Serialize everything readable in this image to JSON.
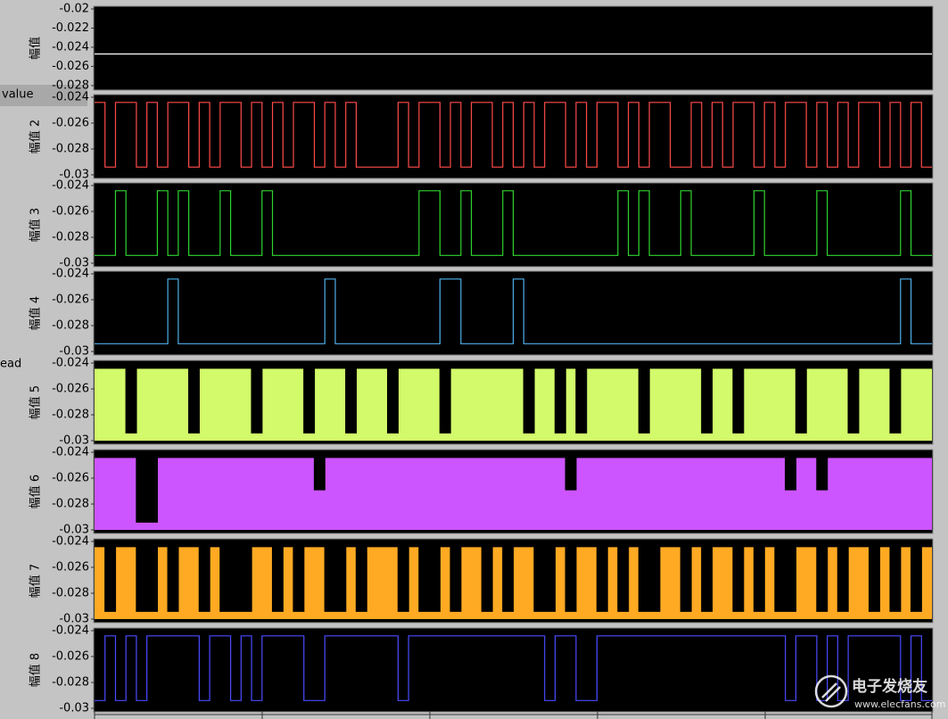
{
  "chart_data": [
    {
      "type": "line",
      "y_label": "幅值",
      "ylim": [
        -0.0281,
        -0.02
      ],
      "yticks": [
        -0.02,
        -0.022,
        -0.024,
        -0.026,
        -0.028
      ],
      "series": [
        {
          "color": "#ffffff",
          "values": [
            -0.0247,
            -0.0247
          ]
        }
      ]
    },
    {
      "type": "line",
      "y_label": "幅值 2",
      "ylim": [
        -0.03,
        -0.024
      ],
      "yticks": [
        -0.024,
        -0.026,
        -0.028,
        -0.03
      ],
      "series": [
        {
          "color": "#ff4a4a",
          "values": [
            -0.0244,
            -0.0294,
            -0.0244,
            -0.0244,
            -0.0294,
            -0.0244,
            -0.0294,
            -0.0244,
            -0.0244,
            -0.0294,
            -0.0244,
            -0.0294,
            -0.0244,
            -0.0244,
            -0.0294,
            -0.0244,
            -0.0294,
            -0.0244,
            -0.0294,
            -0.0244,
            -0.0244,
            -0.0294,
            -0.0244,
            -0.0294,
            -0.0244,
            -0.0294,
            -0.0294,
            -0.0294,
            -0.0294,
            -0.0244,
            -0.0294,
            -0.0244,
            -0.0244,
            -0.0294,
            -0.0244,
            -0.0294,
            -0.0244,
            -0.0244,
            -0.0294,
            -0.0244,
            -0.0294,
            -0.0244,
            -0.0294,
            -0.0244,
            -0.0244,
            -0.0294,
            -0.0244,
            -0.0294,
            -0.0244,
            -0.0244,
            -0.0294,
            -0.0244,
            -0.0294,
            -0.0244,
            -0.0244,
            -0.0294,
            -0.0294,
            -0.0244,
            -0.0294,
            -0.0244,
            -0.0294,
            -0.0244,
            -0.0244,
            -0.0294,
            -0.0244,
            -0.0294,
            -0.0244,
            -0.0244,
            -0.0294,
            -0.0244,
            -0.0294,
            -0.0244,
            -0.0294,
            -0.0244,
            -0.0244,
            -0.0294,
            -0.0244,
            -0.0294,
            -0.0244,
            -0.0294
          ]
        }
      ]
    },
    {
      "type": "line",
      "y_label": "幅值 3",
      "ylim": [
        -0.03,
        -0.024
      ],
      "yticks": [
        -0.024,
        -0.026,
        -0.028,
        -0.03
      ],
      "series": [
        {
          "color": "#2fd42f",
          "values": [
            -0.0294,
            -0.0294,
            -0.0244,
            -0.0294,
            -0.0294,
            -0.0294,
            -0.0244,
            -0.0294,
            -0.0244,
            -0.0294,
            -0.0294,
            -0.0294,
            -0.0244,
            -0.0294,
            -0.0294,
            -0.0294,
            -0.0244,
            -0.0294,
            -0.0294,
            -0.0294,
            -0.0294,
            -0.0294,
            -0.0294,
            -0.0294,
            -0.0294,
            -0.0294,
            -0.0294,
            -0.0294,
            -0.0294,
            -0.0294,
            -0.0294,
            -0.0244,
            -0.0244,
            -0.0294,
            -0.0294,
            -0.0244,
            -0.0294,
            -0.0294,
            -0.0294,
            -0.0244,
            -0.0294,
            -0.0294,
            -0.0294,
            -0.0294,
            -0.0294,
            -0.0294,
            -0.0294,
            -0.0294,
            -0.0294,
            -0.0294,
            -0.0244,
            -0.0294,
            -0.0244,
            -0.0294,
            -0.0294,
            -0.0294,
            -0.0244,
            -0.0294,
            -0.0294,
            -0.0294,
            -0.0294,
            -0.0294,
            -0.0294,
            -0.0244,
            -0.0294,
            -0.0294,
            -0.0294,
            -0.0294,
            -0.0294,
            -0.0244,
            -0.0294,
            -0.0294,
            -0.0294,
            -0.0294,
            -0.0294,
            -0.0294,
            -0.0294,
            -0.0244,
            -0.0294,
            -0.0294
          ]
        }
      ]
    },
    {
      "type": "line",
      "y_label": "幅值 4",
      "ylim": [
        -0.03,
        -0.024
      ],
      "yticks": [
        -0.024,
        -0.026,
        -0.028,
        -0.03
      ],
      "series": [
        {
          "color": "#4fb0ea",
          "values": [
            -0.0294,
            -0.0294,
            -0.0294,
            -0.0294,
            -0.0294,
            -0.0294,
            -0.0294,
            -0.0244,
            -0.0294,
            -0.0294,
            -0.0294,
            -0.0294,
            -0.0294,
            -0.0294,
            -0.0294,
            -0.0294,
            -0.0294,
            -0.0294,
            -0.0294,
            -0.0294,
            -0.0294,
            -0.0294,
            -0.0244,
            -0.0294,
            -0.0294,
            -0.0294,
            -0.0294,
            -0.0294,
            -0.0294,
            -0.0294,
            -0.0294,
            -0.0294,
            -0.0294,
            -0.0244,
            -0.0244,
            -0.0294,
            -0.0294,
            -0.0294,
            -0.0294,
            -0.0294,
            -0.0244,
            -0.0294,
            -0.0294,
            -0.0294,
            -0.0294,
            -0.0294,
            -0.0294,
            -0.0294,
            -0.0294,
            -0.0294,
            -0.0294,
            -0.0294,
            -0.0294,
            -0.0294,
            -0.0294,
            -0.0294,
            -0.0294,
            -0.0294,
            -0.0294,
            -0.0294,
            -0.0294,
            -0.0294,
            -0.0294,
            -0.0294,
            -0.0294,
            -0.0294,
            -0.0294,
            -0.0294,
            -0.0294,
            -0.0294,
            -0.0294,
            -0.0294,
            -0.0294,
            -0.0294,
            -0.0294,
            -0.0294,
            -0.0294,
            -0.0244,
            -0.0294,
            -0.0294
          ]
        }
      ]
    },
    {
      "type": "area",
      "y_label": "幅值 5",
      "ylim": [
        -0.03,
        -0.024
      ],
      "yticks": [
        -0.024,
        -0.026,
        -0.028,
        -0.03
      ],
      "series": [
        {
          "color": "#d2fa6a",
          "values": [
            -0.0244,
            -0.0244,
            -0.0244,
            -0.0294,
            -0.0244,
            -0.0244,
            -0.0244,
            -0.0244,
            -0.0244,
            -0.0294,
            -0.0244,
            -0.0244,
            -0.0244,
            -0.0244,
            -0.0244,
            -0.0294,
            -0.0244,
            -0.0244,
            -0.0244,
            -0.0244,
            -0.0294,
            -0.0244,
            -0.0244,
            -0.0244,
            -0.0294,
            -0.0244,
            -0.0244,
            -0.0244,
            -0.0294,
            -0.0244,
            -0.0244,
            -0.0244,
            -0.0244,
            -0.0294,
            -0.0244,
            -0.0244,
            -0.0244,
            -0.0244,
            -0.0244,
            -0.0244,
            -0.0244,
            -0.0294,
            -0.0244,
            -0.0244,
            -0.0294,
            -0.0244,
            -0.0294,
            -0.0244,
            -0.0244,
            -0.0244,
            -0.0244,
            -0.0244,
            -0.0294,
            -0.0244,
            -0.0244,
            -0.0244,
            -0.0244,
            -0.0244,
            -0.0294,
            -0.0244,
            -0.0244,
            -0.0294,
            -0.0244,
            -0.0244,
            -0.0244,
            -0.0244,
            -0.0244,
            -0.0294,
            -0.0244,
            -0.0244,
            -0.0244,
            -0.0244,
            -0.0294,
            -0.0244,
            -0.0244,
            -0.0244,
            -0.0294,
            -0.0244,
            -0.0244,
            -0.0244
          ]
        }
      ]
    },
    {
      "type": "area",
      "y_label": "幅值 6",
      "ylim": [
        -0.03,
        -0.024
      ],
      "yticks": [
        -0.024,
        -0.026,
        -0.028,
        -0.03
      ],
      "series": [
        {
          "color": "#cc55ff",
          "values": [
            -0.0244,
            -0.0244,
            -0.0244,
            -0.0244,
            -0.0294,
            -0.0294,
            -0.0244,
            -0.0244,
            -0.0244,
            -0.0244,
            -0.0244,
            -0.0244,
            -0.0244,
            -0.0244,
            -0.0244,
            -0.0244,
            -0.0244,
            -0.0244,
            -0.0244,
            -0.0244,
            -0.0244,
            -0.0269,
            -0.0244,
            -0.0244,
            -0.0244,
            -0.0244,
            -0.0244,
            -0.0244,
            -0.0244,
            -0.0244,
            -0.0244,
            -0.0244,
            -0.0244,
            -0.0244,
            -0.0244,
            -0.0244,
            -0.0244,
            -0.0244,
            -0.0244,
            -0.0244,
            -0.0244,
            -0.0244,
            -0.0244,
            -0.0244,
            -0.0244,
            -0.0269,
            -0.0244,
            -0.0244,
            -0.0244,
            -0.0244,
            -0.0244,
            -0.0244,
            -0.0244,
            -0.0244,
            -0.0244,
            -0.0244,
            -0.0244,
            -0.0244,
            -0.0244,
            -0.0244,
            -0.0244,
            -0.0244,
            -0.0244,
            -0.0244,
            -0.0244,
            -0.0244,
            -0.0269,
            -0.0244,
            -0.0244,
            -0.0269,
            -0.0244,
            -0.0244,
            -0.0244,
            -0.0244,
            -0.0244,
            -0.0244,
            -0.0244,
            -0.0244,
            -0.0244,
            -0.0244
          ]
        }
      ]
    },
    {
      "type": "area",
      "y_label": "幅值 7",
      "ylim": [
        -0.03,
        -0.024
      ],
      "yticks": [
        -0.024,
        -0.026,
        -0.028,
        -0.03
      ],
      "series": [
        {
          "color": "#ffaa22",
          "values": [
            -0.0244,
            -0.0294,
            -0.0244,
            -0.0244,
            -0.0294,
            -0.0294,
            -0.0244,
            -0.0294,
            -0.0244,
            -0.0244,
            -0.0294,
            -0.0244,
            -0.0294,
            -0.0294,
            -0.0294,
            -0.0244,
            -0.0244,
            -0.0294,
            -0.0244,
            -0.0294,
            -0.0244,
            -0.0244,
            -0.0294,
            -0.0294,
            -0.0244,
            -0.0294,
            -0.0244,
            -0.0244,
            -0.0244,
            -0.0294,
            -0.0244,
            -0.0294,
            -0.0294,
            -0.0244,
            -0.0294,
            -0.0244,
            -0.0244,
            -0.0294,
            -0.0244,
            -0.0294,
            -0.0244,
            -0.0244,
            -0.0294,
            -0.0294,
            -0.0244,
            -0.0294,
            -0.0244,
            -0.0244,
            -0.0294,
            -0.0244,
            -0.0294,
            -0.0244,
            -0.0294,
            -0.0294,
            -0.0244,
            -0.0244,
            -0.0294,
            -0.0244,
            -0.0294,
            -0.0244,
            -0.0244,
            -0.0294,
            -0.0244,
            -0.0294,
            -0.0244,
            -0.0294,
            -0.0294,
            -0.0244,
            -0.0244,
            -0.0294,
            -0.0244,
            -0.0294,
            -0.0244,
            -0.0244,
            -0.0294,
            -0.0244,
            -0.0294,
            -0.0244,
            -0.0294,
            -0.0244
          ]
        }
      ]
    },
    {
      "type": "line",
      "y_label": "幅值 8",
      "ylim": [
        -0.03,
        -0.024
      ],
      "yticks": [
        -0.024,
        -0.026,
        -0.028,
        -0.03
      ],
      "series": [
        {
          "color": "#4a4aff",
          "values": [
            -0.0294,
            -0.0244,
            -0.0294,
            -0.0244,
            -0.0294,
            -0.0244,
            -0.0244,
            -0.0244,
            -0.0244,
            -0.0244,
            -0.0294,
            -0.0244,
            -0.0244,
            -0.0294,
            -0.0244,
            -0.0294,
            -0.0244,
            -0.0244,
            -0.0244,
            -0.0244,
            -0.0294,
            -0.0294,
            -0.0244,
            -0.0244,
            -0.0244,
            -0.0244,
            -0.0244,
            -0.0244,
            -0.0244,
            -0.0294,
            -0.0244,
            -0.0244,
            -0.0244,
            -0.0244,
            -0.0244,
            -0.0244,
            -0.0244,
            -0.0244,
            -0.0244,
            -0.0244,
            -0.0244,
            -0.0244,
            -0.0244,
            -0.0294,
            -0.0244,
            -0.0244,
            -0.0294,
            -0.0294,
            -0.0244,
            -0.0244,
            -0.0244,
            -0.0244,
            -0.0244,
            -0.0244,
            -0.0244,
            -0.0244,
            -0.0244,
            -0.0244,
            -0.0244,
            -0.0244,
            -0.0244,
            -0.0244,
            -0.0244,
            -0.0244,
            -0.0244,
            -0.0244,
            -0.0294,
            -0.0244,
            -0.0244,
            -0.0294,
            -0.0244,
            -0.0294,
            -0.0244,
            -0.0244,
            -0.0244,
            -0.0244,
            -0.0244,
            -0.0294,
            -0.0244,
            -0.0294
          ]
        }
      ]
    }
  ],
  "side_tabs": [
    "value",
    "ead"
  ],
  "watermark": {
    "name": "电子发烧友",
    "url": "www.elecfans.com"
  }
}
